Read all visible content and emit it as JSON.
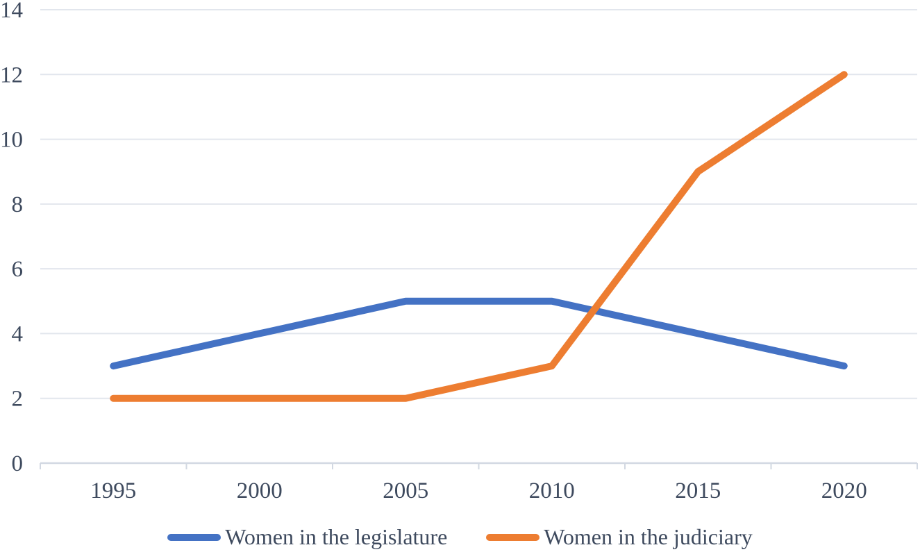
{
  "chart_data": {
    "type": "line",
    "categories": [
      "1995",
      "2000",
      "2005",
      "2010",
      "2015",
      "2020"
    ],
    "series": [
      {
        "name": "Women in the legislature",
        "color": "#4472C4",
        "values": [
          3,
          4,
          5,
          5,
          4,
          3
        ]
      },
      {
        "name": "Women in the judiciary",
        "color": "#ED7D31",
        "values": [
          2,
          2,
          2,
          3,
          9,
          12
        ]
      }
    ],
    "ylim": [
      0,
      14
    ],
    "yticks": [
      0,
      2,
      4,
      6,
      8,
      10,
      12,
      14
    ],
    "grid": true,
    "legend_position": "bottom",
    "colors": {
      "axis_text": "#3E4A5E",
      "gridline": "#E2E6ED",
      "axis_line": "#D2D8E2"
    }
  }
}
